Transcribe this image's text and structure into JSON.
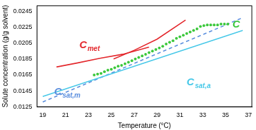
{
  "chart_data": {
    "type": "line",
    "x_label": "Temperature (°C)",
    "y_label": "Solute concentration (g/g solvent)",
    "xlim": [
      18.5,
      37.3
    ],
    "xticks": [
      19,
      21,
      23,
      25,
      27,
      29,
      31,
      33,
      35,
      37
    ],
    "ylim": [
      0.0125,
      0.0252
    ],
    "yticks": [
      0.0125,
      0.0145,
      0.0165,
      0.0185,
      0.0205,
      0.0225,
      0.0245
    ],
    "grid": false,
    "series": [
      {
        "color": "#e3262b",
        "line_style": "solid",
        "x": [
          20.2,
          22,
          24,
          26,
          28.3
        ],
        "values": [
          0.0175,
          0.018,
          0.0186,
          0.0191,
          0.02
        ]
      },
      {
        "color": "#e3262b",
        "line_style": "solid",
        "x": [
          25.2,
          27,
          29,
          31.5
        ],
        "values": [
          0.0185,
          0.0196,
          0.021,
          0.0234
        ]
      },
      {
        "type": "scatter",
        "color": "#3cc83c",
        "marker": "circle",
        "x": [
          23.5,
          23.8,
          24.1,
          24.4,
          24.7,
          25,
          25.3,
          25.6,
          25.9,
          26.2,
          26.5,
          26.8,
          27.1,
          27.4,
          27.7,
          28,
          28.3,
          28.6,
          28.9,
          29.2,
          29.5,
          29.8,
          30.1,
          30.4,
          30.7,
          31,
          31.3,
          31.6,
          31.9,
          32.2,
          32.5,
          32.8,
          33.1,
          33.4,
          33.7,
          34,
          34.3,
          34.6,
          34.9,
          35.2
        ],
        "values": [
          0.0165,
          0.0166,
          0.0167,
          0.0169,
          0.0171,
          0.0172,
          0.0174,
          0.0176,
          0.0177,
          0.0179,
          0.0181,
          0.0183,
          0.0185,
          0.0187,
          0.0189,
          0.0191,
          0.0193,
          0.0195,
          0.0197,
          0.0199,
          0.0201,
          0.0204,
          0.0206,
          0.0208,
          0.0211,
          0.0213,
          0.0215,
          0.0217,
          0.0219,
          0.0221,
          0.0223,
          0.0226,
          0.0227,
          0.0228,
          0.0228,
          0.0228,
          0.0228,
          0.0229,
          0.0229,
          0.0229
        ]
      },
      {
        "color": "#46c8e8",
        "line_style": "solid",
        "x": [
          19,
          36.5
        ],
        "values": [
          0.0138,
          0.0221
        ]
      },
      {
        "color": "#5a8ede",
        "line_style": "dashed",
        "x": [
          19,
          36.5
        ],
        "values": [
          0.0131,
          0.0237
        ]
      }
    ],
    "annotations": [
      {
        "text": "C",
        "subscript": "met",
        "x": 22.2,
        "y": 0.0199,
        "color": "#e3262b"
      },
      {
        "text": "C",
        "subscript": "sat,a",
        "x": 31.6,
        "y": 0.0152,
        "color": "#46c8e8"
      },
      {
        "text": "C",
        "subscript": "sat,m",
        "x": 20.0,
        "y": 0.014,
        "color": "#5a8ede"
      },
      {
        "text": "C",
        "x": 35.6,
        "y": 0.0225,
        "color": "#3cc83c"
      }
    ]
  }
}
